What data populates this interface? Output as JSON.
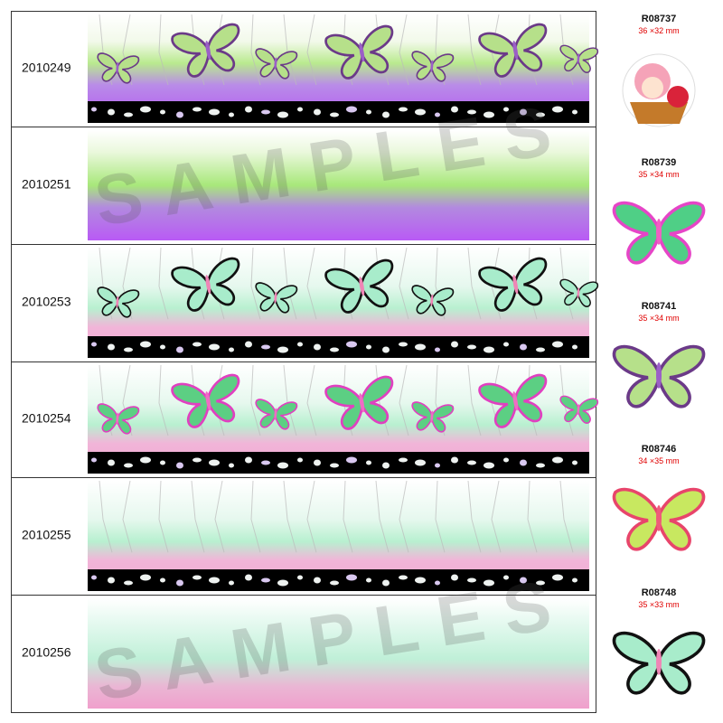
{
  "rows": [
    "2010249",
    "2010251",
    "2010253",
    "2010254",
    "2010255",
    "2010256"
  ],
  "watermark": "SAMPLES",
  "items": [
    {
      "code": "R08737",
      "size": "36 ×32 mm"
    },
    {
      "code": "R08739",
      "size": "35 ×34 mm"
    },
    {
      "code": "R08741",
      "size": "35 ×34 mm"
    },
    {
      "code": "R08746",
      "size": "34 ×35 mm"
    },
    {
      "code": "R08748",
      "size": "35 ×33 mm"
    }
  ]
}
